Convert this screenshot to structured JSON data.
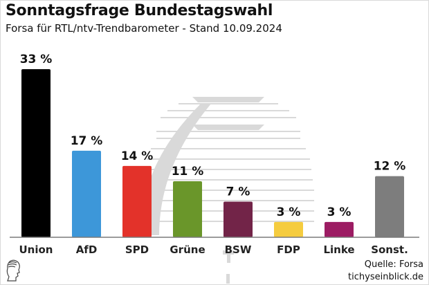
{
  "header": {
    "title": "Sonntagsfrage Bundestagswahl",
    "subtitle": "Forsa für RTL/ntv-Trendbarometer - Stand 10.09.2024"
  },
  "footer": {
    "source": "Quelle: Forsa",
    "site": "tichyseinblick.de"
  },
  "chart_data": {
    "type": "bar",
    "title": "Sonntagsfrage Bundestagswahl",
    "subtitle": "Forsa für RTL/ntv-Trendbarometer - Stand 10.09.2024",
    "xlabel": "",
    "ylabel": "",
    "unit": "%",
    "grid": false,
    "ylim": [
      0,
      33
    ],
    "categories": [
      "Union",
      "AfD",
      "SPD",
      "Grüne",
      "BSW",
      "FDP",
      "Linke",
      "Sonst."
    ],
    "values": [
      33,
      17,
      14,
      11,
      7,
      3,
      3,
      12
    ],
    "data_labels": [
      "33 %",
      "17 %",
      "14 %",
      "11 %",
      "7 %",
      "3 %",
      "3 %",
      "12 %"
    ],
    "colors": [
      "#000000",
      "#3d97d9",
      "#e3322a",
      "#6a962a",
      "#722448",
      "#f5cc3f",
      "#9c1c63",
      "#7d7d7d"
    ]
  }
}
